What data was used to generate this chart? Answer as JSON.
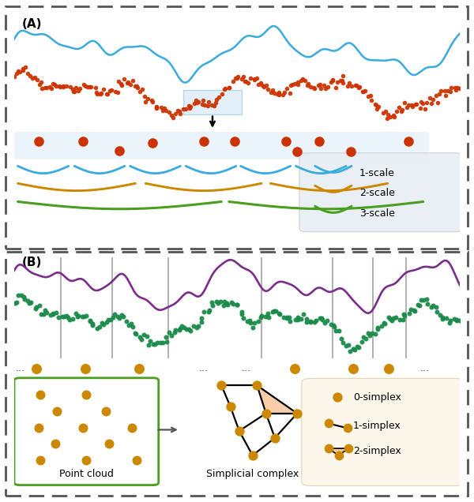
{
  "fig_width": 6.0,
  "fig_height": 6.36,
  "dpi": 100,
  "blue_line_color": "#3aabde",
  "orange_dot_color": "#cc3300",
  "teal_dot_color": "#1a8a4a",
  "purple_line_color": "#7b2d8b",
  "gold_dot_color": "#cc8800",
  "brace_blue": "#3aabde",
  "brace_gold": "#cc8800",
  "brace_green": "#4a9e20",
  "border_color": "#555555",
  "bg_blue": "#ddeef8",
  "legend_bg_A": "#e8eef5",
  "legend_bg_B": "#fdf5e8",
  "panel_A_label": "(A)",
  "panel_B_label": "(B)",
  "scale1_label": "1-scale",
  "scale2_label": "2-scale",
  "scale3_label": "3-scale",
  "simplex0_label": "0-simplex",
  "simplex1_label": "1-simplex",
  "simplex2_label": "2-simplex",
  "point_cloud_label": "Point cloud",
  "simplicial_complex_label": "Simplicial complex",
  "pc_green": "#4a9e20",
  "tri_fill": "#f7c9a0"
}
